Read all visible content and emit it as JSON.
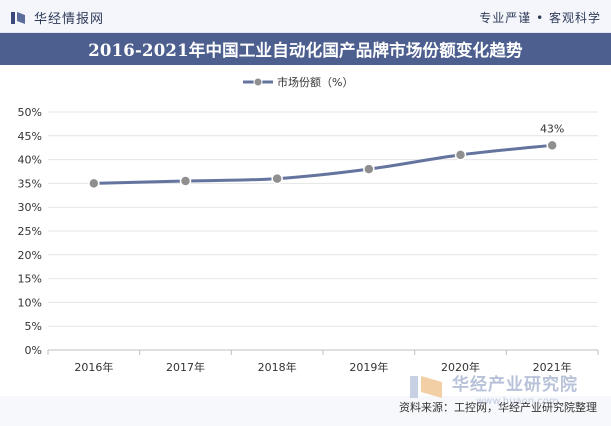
{
  "header": {
    "brand": "华经情报网",
    "tagline": "专业严谨 • 客观科学"
  },
  "chart_data": {
    "type": "line",
    "title": "2016-2021年中国工业自动化国产品牌市场份额变化趋势",
    "categories": [
      "2016年",
      "2017年",
      "2018年",
      "2019年",
      "2020年",
      "2021年"
    ],
    "series": [
      {
        "name": "市场份额（%）",
        "values": [
          35,
          35.5,
          36,
          38,
          41,
          43
        ],
        "color": "#64749f"
      }
    ],
    "data_labels": [
      {
        "category": "2021年",
        "text": "43%"
      }
    ],
    "ylim": [
      0,
      50
    ],
    "y_ticks": [
      0,
      5,
      10,
      15,
      20,
      25,
      30,
      35,
      40,
      45,
      50
    ],
    "y_tick_labels": [
      "0%",
      "5%",
      "10%",
      "15%",
      "20%",
      "25%",
      "30%",
      "35%",
      "40%",
      "45%",
      "50%"
    ],
    "grid": true,
    "legend_position": "top-center",
    "xlabel": "",
    "ylabel": ""
  },
  "source": "资料来源：工控网，华经产业研究院整理",
  "watermark": {
    "text": "华经产业研究院",
    "url": "www.huaon.com"
  }
}
